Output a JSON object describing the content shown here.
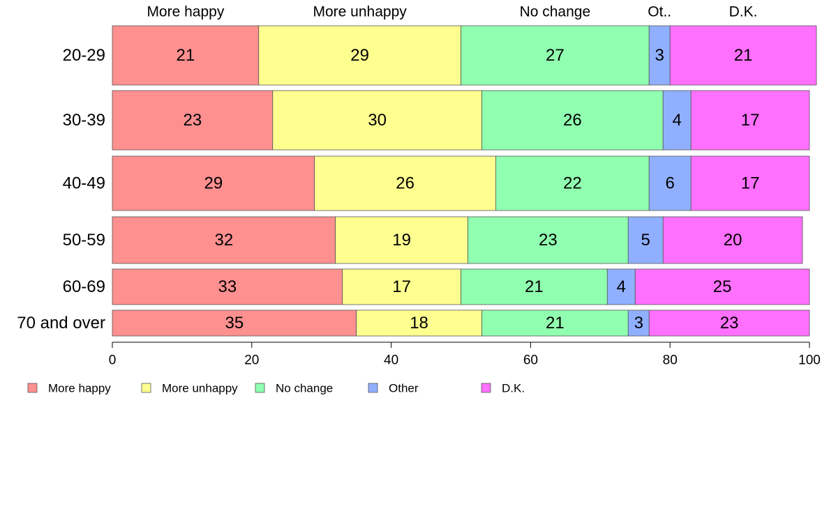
{
  "chart_data": {
    "type": "bar",
    "orientation": "horizontal",
    "stacked": true,
    "categories": [
      "20-29",
      "30-39",
      "40-49",
      "50-59",
      "60-69",
      "70 and over"
    ],
    "series": [
      {
        "name": "More happy",
        "color": "#ff9090",
        "values": [
          21,
          23,
          29,
          32,
          33,
          35
        ]
      },
      {
        "name": "More unhappy",
        "color": "#ffff90",
        "values": [
          29,
          30,
          26,
          19,
          17,
          18
        ]
      },
      {
        "name": "No change",
        "color": "#90ffb0",
        "values": [
          27,
          26,
          22,
          23,
          21,
          21
        ]
      },
      {
        "name": "Other",
        "color": "#90b0ff",
        "values": [
          3,
          4,
          6,
          5,
          4,
          3
        ]
      },
      {
        "name": "D.K.",
        "color": "#ff70ff",
        "values": [
          21,
          17,
          17,
          20,
          25,
          23
        ]
      }
    ],
    "segment_labels": [
      [
        "21",
        "29",
        "27",
        "3",
        "21"
      ],
      [
        "23",
        "30",
        "26",
        "4",
        "17"
      ],
      [
        "29",
        "26",
        "22",
        "6",
        "17"
      ],
      [
        "32",
        "19",
        "23",
        "5",
        "20"
      ],
      [
        "33",
        "17",
        "21",
        "4",
        "25"
      ],
      [
        "35",
        "18",
        "21",
        "3",
        "23"
      ]
    ],
    "top_labels": [
      "More happy",
      "More unhappy",
      "No change",
      "Ot..",
      "D.K."
    ],
    "x_ticks": [
      "0",
      "20",
      "40",
      "60",
      "80",
      "100"
    ],
    "xlim": [
      0,
      100
    ],
    "legend": [
      "More happy",
      "More unhappy",
      "No change",
      "Other",
      "D.K."
    ],
    "legend_position": "bottom-left",
    "grid": false
  }
}
